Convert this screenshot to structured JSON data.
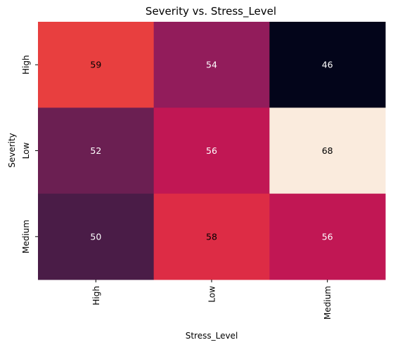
{
  "chart_data": {
    "type": "heatmap",
    "title": "Severity vs. Stress_Level",
    "xlabel": "Stress_Level",
    "ylabel": "Severity",
    "x_categories": [
      "High",
      "Low",
      "Medium"
    ],
    "y_categories": [
      "High",
      "Low",
      "Medium"
    ],
    "values": [
      [
        59,
        54,
        46
      ],
      [
        52,
        56,
        68
      ],
      [
        50,
        58,
        56
      ]
    ],
    "value_range": [
      46,
      68
    ],
    "colorbar": false,
    "grid": false,
    "colormap": "rocket",
    "colors": {
      "46": "#03051a",
      "50": "#4a1c47",
      "52": "#6b1f52",
      "54": "#921c5b",
      "56": "#c11754",
      "58": "#dd2c45",
      "59": "#e83f3f",
      "68": "#faebdd"
    },
    "text_color_dark": "#000000",
    "text_color_light": "#ffffff"
  }
}
